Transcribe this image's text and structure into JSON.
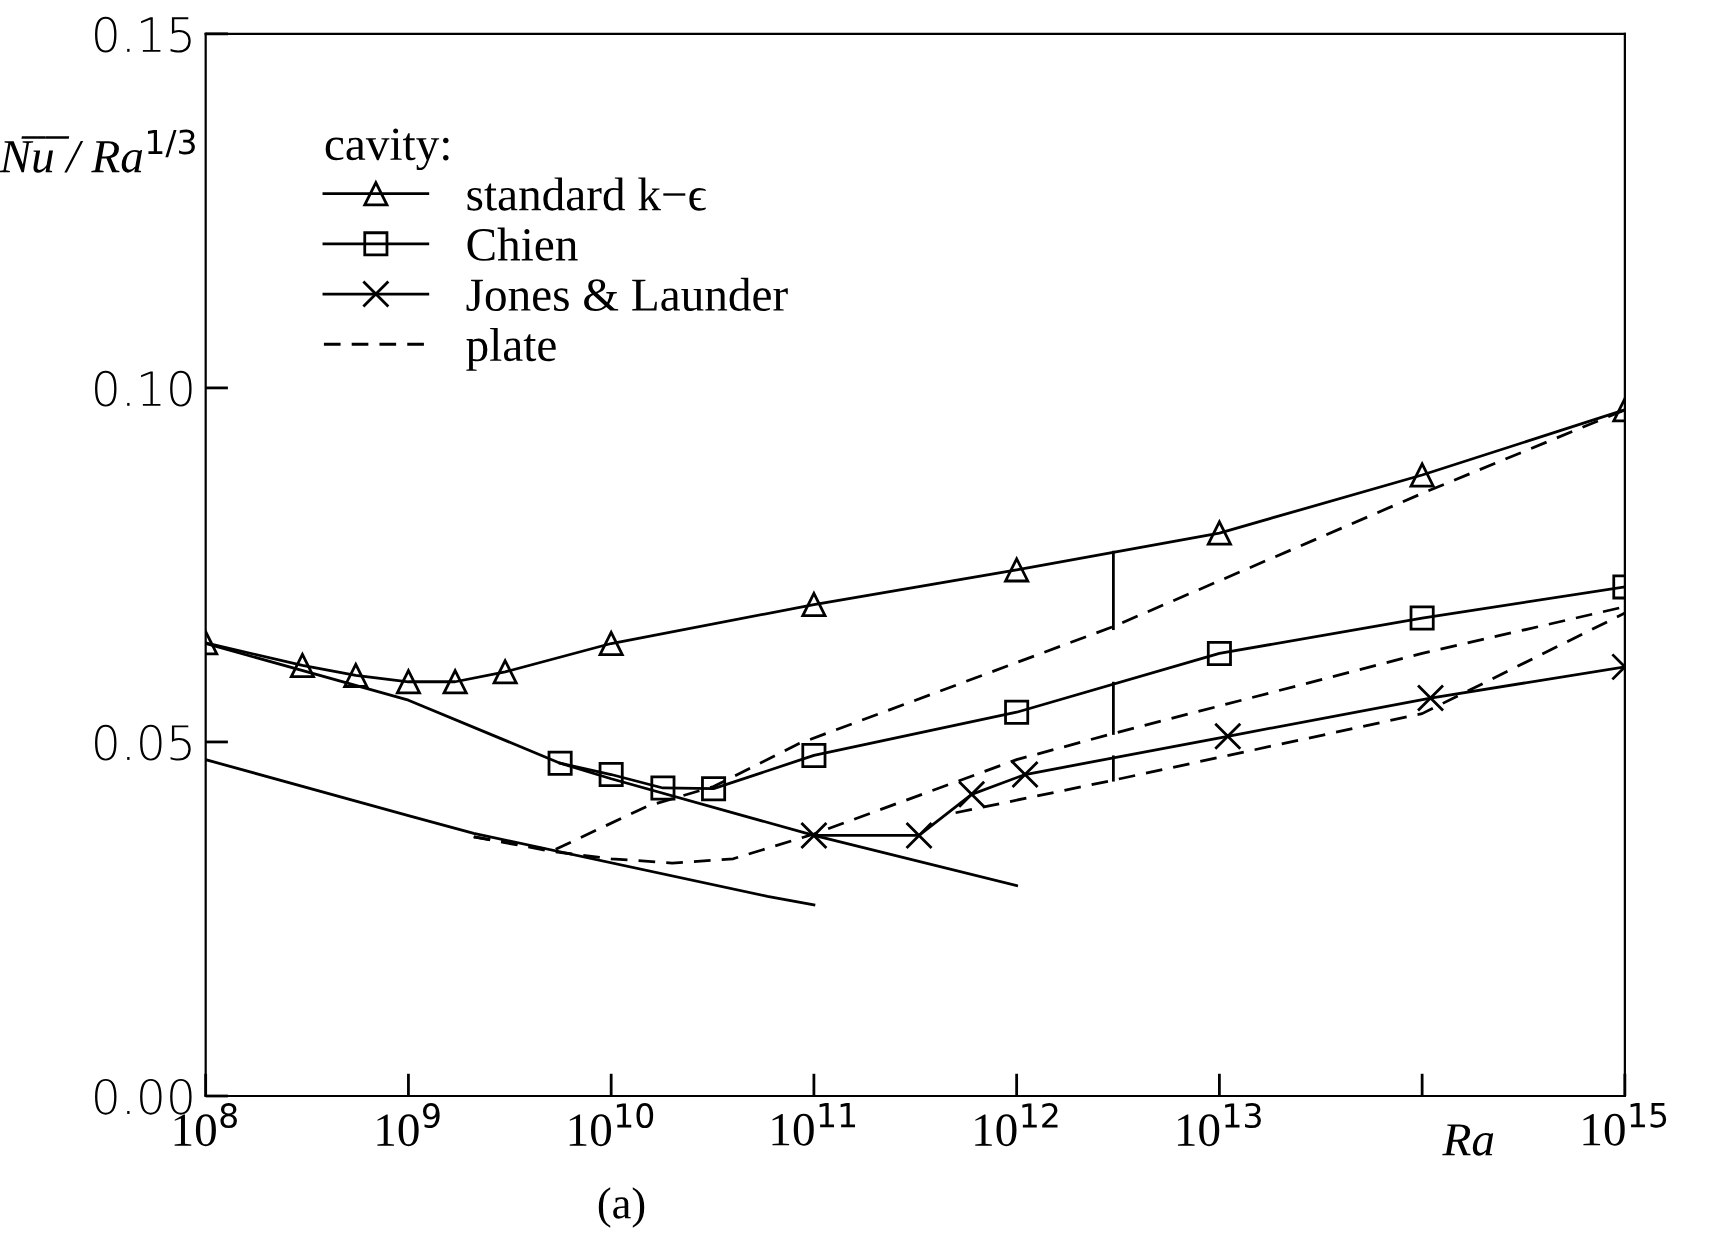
{
  "chart_data": {
    "type": "line",
    "xlabel": "Ra",
    "ylabel": "N̅u̅ / Ra$^{1/3}$",
    "legend_title": "cavity:",
    "annotations": [
      "(a)"
    ],
    "log": "x",
    "legend": "top left",
    "grid": false,
    "line_style": "solid",
    "xlim": [
      100000000.0,
      1000000000000000.0
    ],
    "ylim": [
      0,
      0.15
    ],
    "xticks": [
      {
        "value": 100000000.0,
        "label": "10$^{8}$"
      },
      {
        "value": 1000000000.0,
        "label": "10$^{9}$"
      },
      {
        "value": 10000000000.0,
        "label": "10$^{10}$"
      },
      {
        "value": 100000000000.0,
        "label": "10$^{11}$"
      },
      {
        "value": 1000000000000.0,
        "label": "10$^{12}$"
      },
      {
        "value": 10000000000000.0,
        "label": "10$^{13}$"
      },
      {
        "value": 100000000000000.0,
        "label": null
      },
      {
        "value": 1000000000000000.0,
        "label": "10$^{15}$"
      }
    ],
    "yticks": [
      {
        "value": 0,
        "label": "0.00"
      },
      {
        "value": 0.05,
        "label": "0.05"
      },
      {
        "value": 0.1,
        "label": "0.10"
      },
      {
        "value": 0.15,
        "label": "0.15"
      }
    ],
    "series": [
      {
        "name": "standard k−ϵ",
        "color": "#000000",
        "marker": "triangle",
        "x": [
          100000000.0,
          300000000.0,
          550000000.0,
          1000000000.0,
          1700000000.0,
          3000000000.0,
          10000000000.0,
          100000000000.0,
          1000000000000.0,
          10000000000000.0,
          100000000000000.0,
          1000000000000000.0
        ],
        "values": [
          0.064,
          0.0608,
          0.0594,
          0.0585,
          0.0585,
          0.0599,
          0.0639,
          0.0694,
          0.0743,
          0.0795,
          0.0877,
          0.0969
        ]
      },
      {
        "name": "Chien",
        "color": "#000000",
        "marker": "square",
        "x": [
          5600000000.0,
          10000000000.0,
          18000000000.0,
          32000000000.0,
          100000000000.0,
          1000000000000.0,
          10000000000000.0,
          100000000000000.0,
          1000000000000000.0
        ],
        "values": [
          0.047,
          0.0454,
          0.0435,
          0.0434,
          0.0481,
          0.0542,
          0.0625,
          0.0675,
          0.0719
        ]
      },
      {
        "name": "Jones & Launder",
        "color": "#000000",
        "marker": "cross",
        "x": [
          100000000000.0,
          330000000000.0,
          600000000000.0,
          1100000000000.0,
          11000000000000.0,
          110000000000000.0,
          1000000000000000.0
        ],
        "values": [
          0.0368,
          0.0368,
          0.0426,
          0.0454,
          0.0508,
          0.0562,
          0.0606
        ]
      },
      {
        "color": "#000000",
        "marker": "none",
        "x": [
          100000000.0,
          1000000000.0,
          5600000000.0,
          10000000000.0,
          100000000000.0,
          1000000000000.0
        ],
        "values": [
          0.0639,
          0.0559,
          0.047,
          0.0448,
          0.0368,
          0.0297
        ]
      },
      {
        "color": "#000000",
        "marker": "none",
        "x": [
          100000000.0,
          1000000000.0,
          2100000000.0,
          59000000000.0,
          100000000000.0
        ],
        "values": [
          0.0475,
          0.0396,
          0.0371,
          0.0282,
          0.027
        ]
      },
      {
        "name": "plate",
        "color": "#000000",
        "marker": "none",
        "line_style": "dashed",
        "x": [
          2100000000.0,
          5200000000.0,
          15000000000.0,
          32000000000.0,
          85000000000.0,
          3000000000000.0,
          100000000000000.0,
          1000000000000000.0
        ],
        "values": [
          0.0366,
          0.0347,
          0.0409,
          0.0437,
          0.0498,
          0.0663,
          0.0851,
          0.0969
        ]
      },
      {
        "color": "#000000",
        "marker": "none",
        "line_style": "dashed",
        "x": [
          2100000000.0,
          5200000000.0,
          10000000000.0,
          20000000000.0,
          40000000000.0,
          100000000000.0,
          1000000000000.0,
          3000000000000.0,
          100000000000000.0,
          1000000000000000.0
        ],
        "values": [
          0.0366,
          0.0345,
          0.0335,
          0.0329,
          0.0335,
          0.037,
          0.0475,
          0.0512,
          0.0625,
          0.0691
        ]
      },
      {
        "color": "#000000",
        "marker": "none",
        "line_style": "dashed",
        "x": [
          500000000000.0,
          3000000000000.0,
          100000000000000.0,
          1000000000000000.0
        ],
        "values": [
          0.04,
          0.0446,
          0.054,
          0.0682
        ]
      },
      {
        "color": "#000000",
        "marker": "none",
        "x": [
          3000000000000.0,
          3000000000000.0
        ],
        "values": [
          0.0768,
          0.066
        ]
      },
      {
        "color": "#000000",
        "marker": "none",
        "x": [
          3000000000000.0,
          3000000000000.0
        ],
        "values": [
          0.0583,
          0.0512
        ]
      },
      {
        "color": "#000000",
        "marker": "none",
        "x": [
          3000000000000.0,
          3000000000000.0
        ],
        "values": [
          0.0479,
          0.0446
        ]
      }
    ]
  }
}
